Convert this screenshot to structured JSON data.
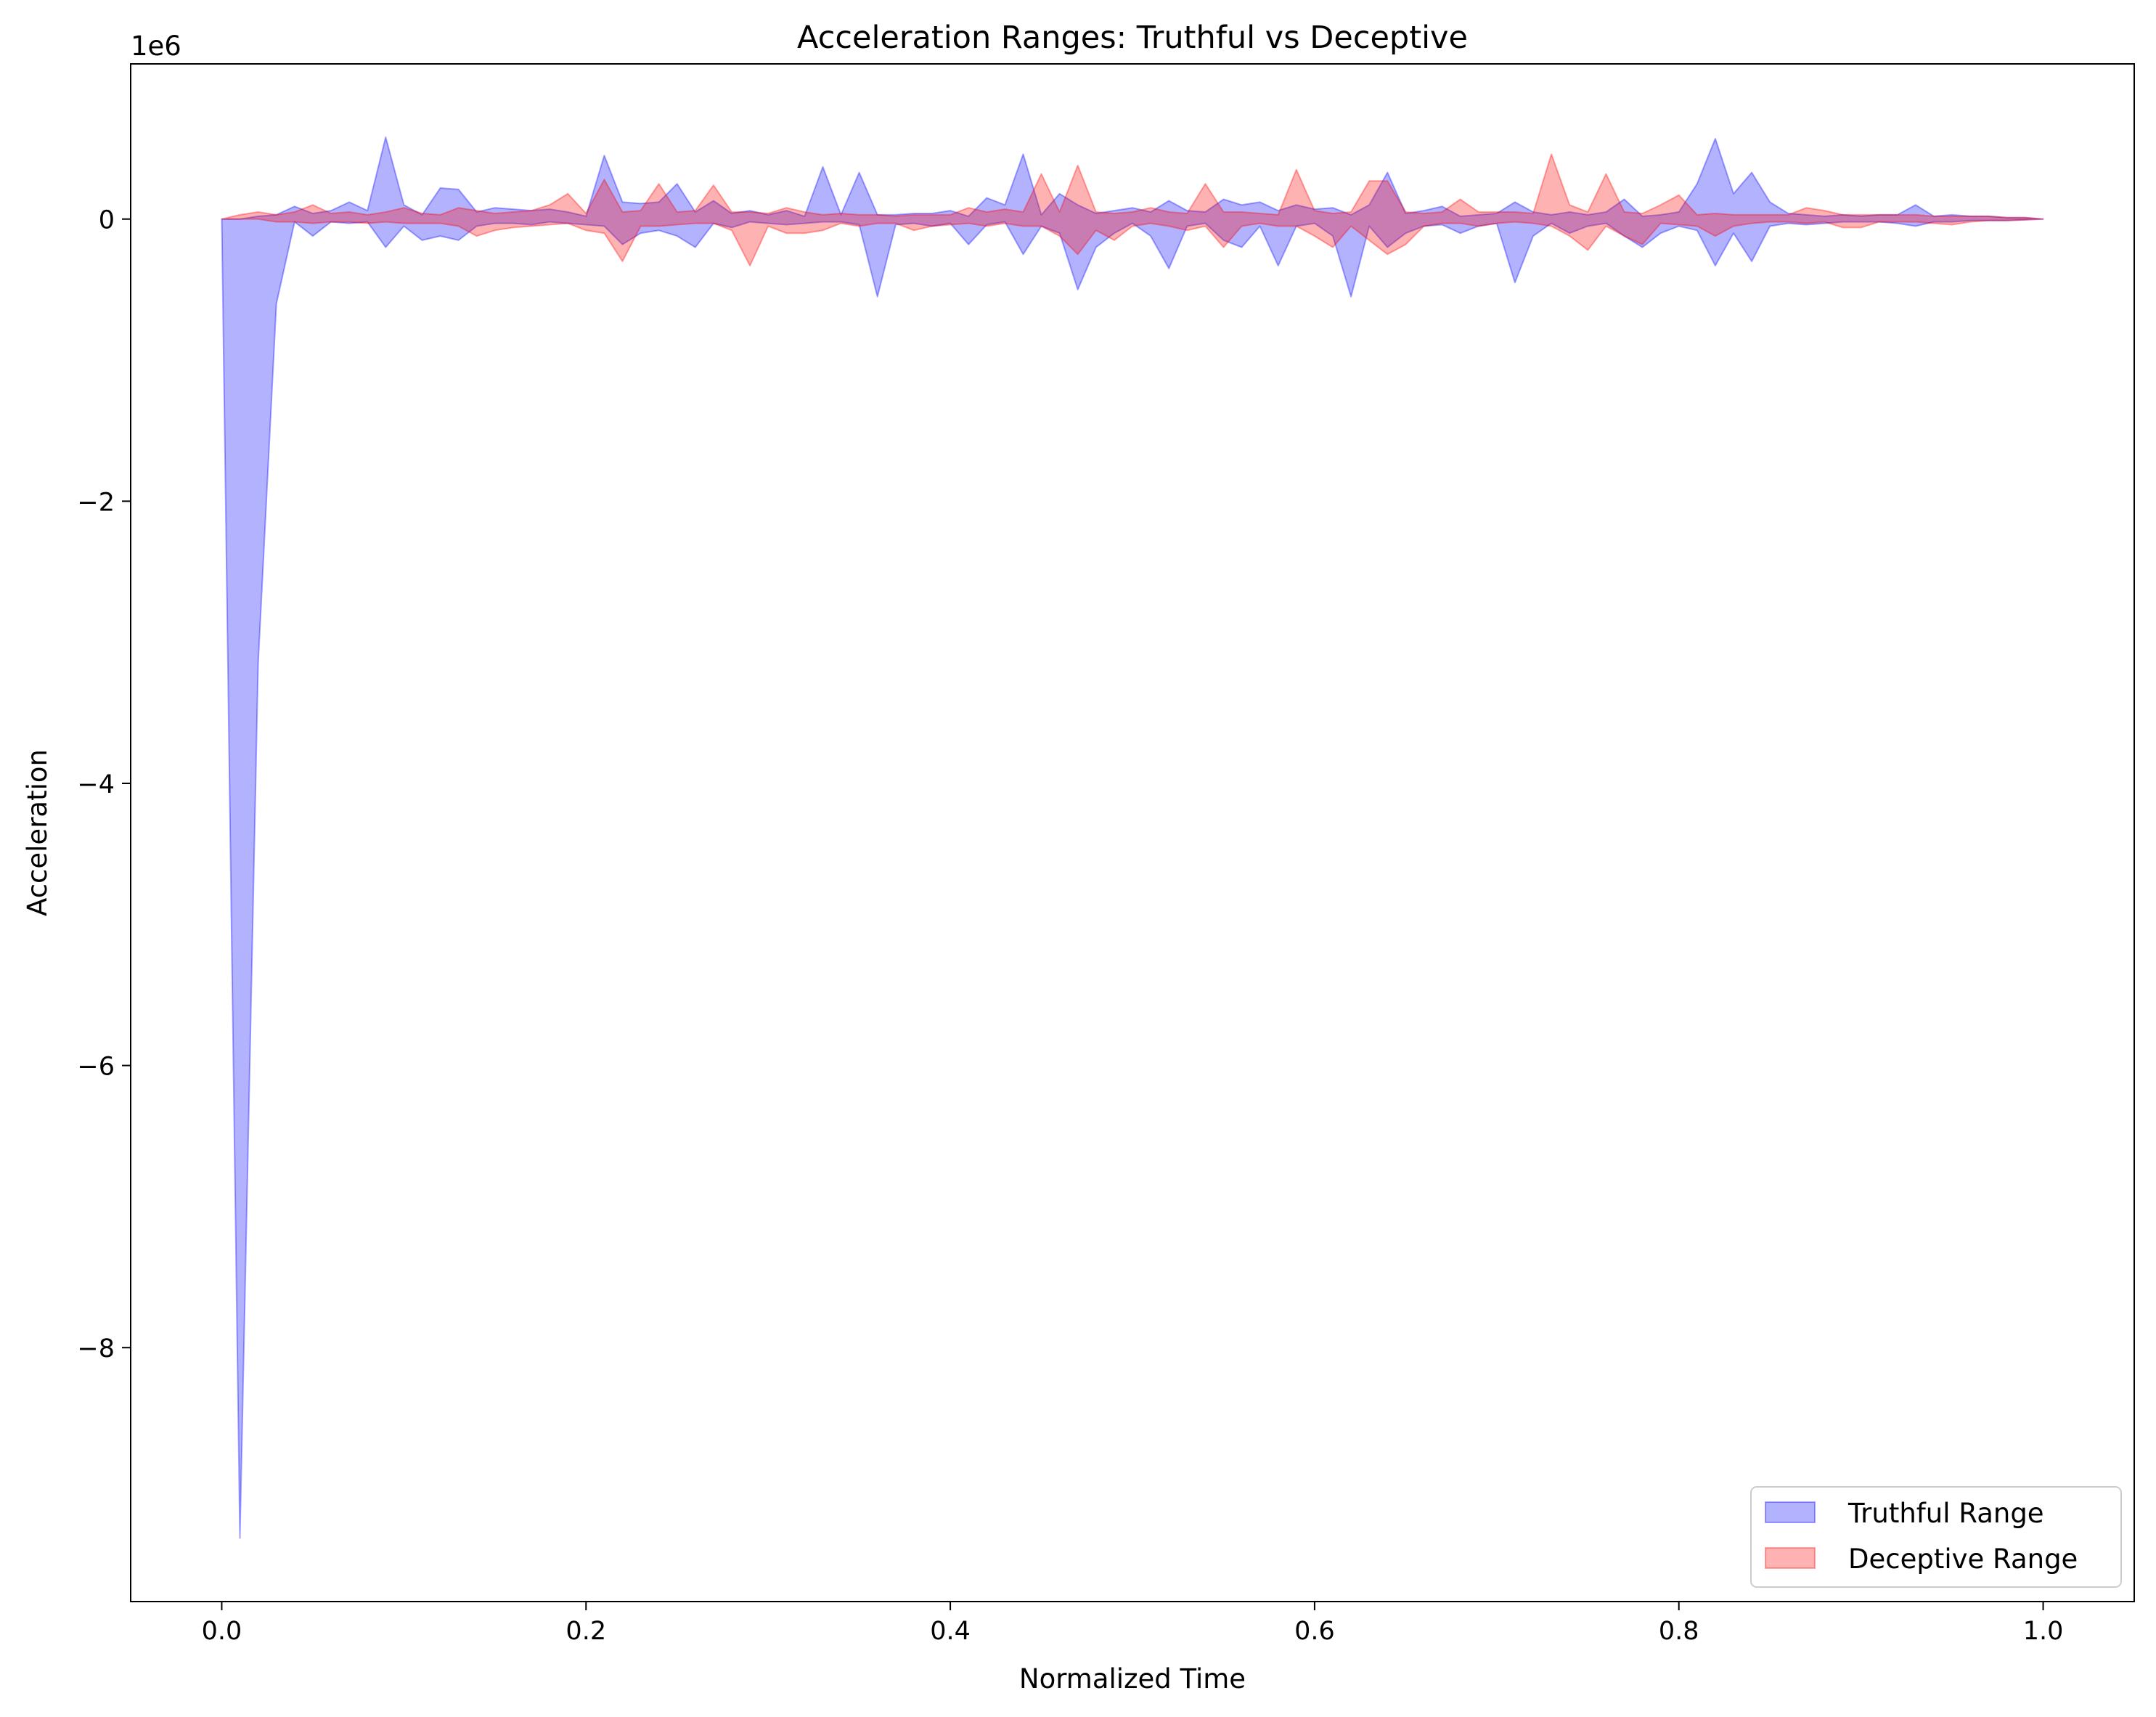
{
  "chart_data": {
    "type": "area",
    "title": "Acceleration Ranges: Truthful vs Deceptive",
    "xlabel": "Normalized Time",
    "ylabel": "Acceleration",
    "y_offset_text": "1e6",
    "y_scale_factor": 1000000,
    "xlim": [
      -0.05,
      1.05
    ],
    "ylim": [
      -9.8,
      1.1
    ],
    "x_ticks": [
      0.0,
      0.2,
      0.4,
      0.6,
      0.8,
      1.0
    ],
    "x_tick_labels": [
      "0.0",
      "0.2",
      "0.4",
      "0.6",
      "0.8",
      "1.0"
    ],
    "y_ticks": [
      0,
      -2,
      -4,
      -6,
      -8
    ],
    "y_tick_labels": [
      "0",
      "−2",
      "−4",
      "−6",
      "−8"
    ],
    "grid": false,
    "legend_position": "lower-right",
    "series": [
      {
        "name": "Truthful Range",
        "color": "#0000ff",
        "alpha": 0.3,
        "points": [
          [
            0.0,
            0.0,
            0.0
          ],
          [
            0.01,
            0.0,
            -9.35
          ],
          [
            0.02,
            0.02,
            -3.15
          ],
          [
            0.03,
            0.03,
            -0.6
          ],
          [
            0.04,
            0.09,
            -0.02
          ],
          [
            0.05,
            0.04,
            -0.12
          ],
          [
            0.06,
            0.06,
            -0.02
          ],
          [
            0.07,
            0.12,
            -0.03
          ],
          [
            0.08,
            0.06,
            -0.02
          ],
          [
            0.09,
            0.58,
            -0.2
          ],
          [
            0.1,
            0.1,
            -0.05
          ],
          [
            0.11,
            0.03,
            -0.15
          ],
          [
            0.12,
            0.22,
            -0.12
          ],
          [
            0.13,
            0.21,
            -0.15
          ],
          [
            0.14,
            0.05,
            -0.05
          ],
          [
            0.15,
            0.08,
            -0.03
          ],
          [
            0.16,
            0.07,
            -0.03
          ],
          [
            0.17,
            0.06,
            -0.04
          ],
          [
            0.18,
            0.07,
            -0.02
          ],
          [
            0.19,
            0.05,
            -0.03
          ],
          [
            0.2,
            0.02,
            -0.04
          ],
          [
            0.21,
            0.45,
            -0.05
          ],
          [
            0.22,
            0.12,
            -0.18
          ],
          [
            0.23,
            0.11,
            -0.1
          ],
          [
            0.24,
            0.12,
            -0.08
          ],
          [
            0.25,
            0.25,
            -0.12
          ],
          [
            0.26,
            0.05,
            -0.2
          ],
          [
            0.27,
            0.13,
            -0.03
          ],
          [
            0.28,
            0.04,
            -0.06
          ],
          [
            0.29,
            0.06,
            -0.02
          ],
          [
            0.3,
            0.03,
            -0.03
          ],
          [
            0.31,
            0.06,
            -0.04
          ],
          [
            0.32,
            0.02,
            -0.03
          ],
          [
            0.33,
            0.37,
            -0.02
          ],
          [
            0.34,
            0.03,
            -0.02
          ],
          [
            0.35,
            0.33,
            -0.04
          ],
          [
            0.36,
            0.03,
            -0.55
          ],
          [
            0.37,
            0.03,
            -0.04
          ],
          [
            0.38,
            0.04,
            -0.03
          ],
          [
            0.39,
            0.04,
            -0.05
          ],
          [
            0.4,
            0.06,
            -0.03
          ],
          [
            0.41,
            0.02,
            -0.18
          ],
          [
            0.42,
            0.15,
            -0.04
          ],
          [
            0.43,
            0.1,
            -0.02
          ],
          [
            0.44,
            0.46,
            -0.25
          ],
          [
            0.45,
            0.03,
            -0.05
          ],
          [
            0.46,
            0.18,
            -0.1
          ],
          [
            0.47,
            0.1,
            -0.5
          ],
          [
            0.48,
            0.04,
            -0.2
          ],
          [
            0.49,
            0.06,
            -0.1
          ],
          [
            0.5,
            0.08,
            -0.03
          ],
          [
            0.51,
            0.05,
            -0.12
          ],
          [
            0.52,
            0.13,
            -0.35
          ],
          [
            0.53,
            0.06,
            -0.05
          ],
          [
            0.54,
            0.05,
            -0.03
          ],
          [
            0.55,
            0.14,
            -0.15
          ],
          [
            0.56,
            0.1,
            -0.2
          ],
          [
            0.57,
            0.12,
            -0.05
          ],
          [
            0.58,
            0.06,
            -0.33
          ],
          [
            0.59,
            0.1,
            -0.05
          ],
          [
            0.6,
            0.07,
            -0.03
          ],
          [
            0.61,
            0.08,
            -0.12
          ],
          [
            0.62,
            0.03,
            -0.55
          ],
          [
            0.63,
            0.1,
            -0.05
          ],
          [
            0.64,
            0.33,
            -0.2
          ],
          [
            0.65,
            0.04,
            -0.1
          ],
          [
            0.66,
            0.06,
            -0.05
          ],
          [
            0.67,
            0.09,
            -0.04
          ],
          [
            0.68,
            0.02,
            -0.1
          ],
          [
            0.69,
            0.03,
            -0.05
          ],
          [
            0.7,
            0.04,
            -0.03
          ],
          [
            0.71,
            0.12,
            -0.45
          ],
          [
            0.72,
            0.05,
            -0.12
          ],
          [
            0.73,
            0.03,
            -0.03
          ],
          [
            0.74,
            0.05,
            -0.1
          ],
          [
            0.75,
            0.03,
            -0.05
          ],
          [
            0.76,
            0.05,
            -0.03
          ],
          [
            0.77,
            0.14,
            -0.12
          ],
          [
            0.78,
            0.02,
            -0.2
          ],
          [
            0.79,
            0.03,
            -0.1
          ],
          [
            0.8,
            0.05,
            -0.05
          ],
          [
            0.81,
            0.25,
            -0.08
          ],
          [
            0.82,
            0.57,
            -0.33
          ],
          [
            0.83,
            0.18,
            -0.1
          ],
          [
            0.84,
            0.33,
            -0.3
          ],
          [
            0.85,
            0.12,
            -0.05
          ],
          [
            0.86,
            0.04,
            -0.03
          ],
          [
            0.87,
            0.03,
            -0.04
          ],
          [
            0.88,
            0.02,
            -0.03
          ],
          [
            0.89,
            0.03,
            -0.02
          ],
          [
            0.9,
            0.02,
            -0.02
          ],
          [
            0.91,
            0.03,
            -0.02
          ],
          [
            0.92,
            0.03,
            -0.03
          ],
          [
            0.93,
            0.1,
            -0.05
          ],
          [
            0.94,
            0.02,
            -0.02
          ],
          [
            0.95,
            0.03,
            -0.02
          ],
          [
            0.96,
            0.02,
            -0.01
          ],
          [
            0.97,
            0.02,
            -0.01
          ],
          [
            0.98,
            0.01,
            -0.01
          ],
          [
            0.99,
            0.01,
            -0.005
          ],
          [
            1.0,
            0.0,
            0.0
          ]
        ]
      },
      {
        "name": "Deceptive Range",
        "color": "#ff0000",
        "alpha": 0.3,
        "points": [
          [
            0.0,
            0.0,
            0.0
          ],
          [
            0.01,
            0.03,
            0.0
          ],
          [
            0.02,
            0.05,
            0.0
          ],
          [
            0.03,
            0.03,
            -0.02
          ],
          [
            0.04,
            0.05,
            -0.02
          ],
          [
            0.05,
            0.1,
            -0.03
          ],
          [
            0.06,
            0.04,
            -0.02
          ],
          [
            0.07,
            0.05,
            -0.02
          ],
          [
            0.08,
            0.03,
            -0.03
          ],
          [
            0.09,
            0.05,
            -0.02
          ],
          [
            0.1,
            0.08,
            -0.03
          ],
          [
            0.11,
            0.04,
            -0.03
          ],
          [
            0.12,
            0.03,
            -0.03
          ],
          [
            0.13,
            0.08,
            -0.05
          ],
          [
            0.14,
            0.06,
            -0.12
          ],
          [
            0.15,
            0.04,
            -0.08
          ],
          [
            0.16,
            0.05,
            -0.06
          ],
          [
            0.17,
            0.06,
            -0.05
          ],
          [
            0.18,
            0.1,
            -0.04
          ],
          [
            0.19,
            0.18,
            -0.03
          ],
          [
            0.2,
            0.04,
            -0.08
          ],
          [
            0.21,
            0.28,
            -0.1
          ],
          [
            0.22,
            0.05,
            -0.3
          ],
          [
            0.23,
            0.06,
            -0.05
          ],
          [
            0.24,
            0.25,
            -0.05
          ],
          [
            0.25,
            0.05,
            -0.04
          ],
          [
            0.26,
            0.06,
            -0.03
          ],
          [
            0.27,
            0.24,
            -0.03
          ],
          [
            0.28,
            0.05,
            -0.08
          ],
          [
            0.29,
            0.05,
            -0.33
          ],
          [
            0.3,
            0.04,
            -0.05
          ],
          [
            0.31,
            0.08,
            -0.1
          ],
          [
            0.32,
            0.05,
            -0.1
          ],
          [
            0.33,
            0.03,
            -0.08
          ],
          [
            0.34,
            0.04,
            -0.03
          ],
          [
            0.35,
            0.03,
            -0.05
          ],
          [
            0.36,
            0.03,
            -0.03
          ],
          [
            0.37,
            0.02,
            -0.03
          ],
          [
            0.38,
            0.03,
            -0.08
          ],
          [
            0.39,
            0.03,
            -0.05
          ],
          [
            0.4,
            0.03,
            -0.04
          ],
          [
            0.41,
            0.08,
            -0.03
          ],
          [
            0.42,
            0.05,
            -0.05
          ],
          [
            0.43,
            0.07,
            -0.03
          ],
          [
            0.44,
            0.05,
            -0.05
          ],
          [
            0.45,
            0.32,
            -0.05
          ],
          [
            0.46,
            0.05,
            -0.12
          ],
          [
            0.47,
            0.38,
            -0.25
          ],
          [
            0.48,
            0.05,
            -0.08
          ],
          [
            0.49,
            0.04,
            -0.15
          ],
          [
            0.5,
            0.05,
            -0.05
          ],
          [
            0.51,
            0.08,
            -0.03
          ],
          [
            0.52,
            0.05,
            -0.05
          ],
          [
            0.53,
            0.04,
            -0.08
          ],
          [
            0.54,
            0.25,
            -0.05
          ],
          [
            0.55,
            0.05,
            -0.2
          ],
          [
            0.56,
            0.05,
            -0.05
          ],
          [
            0.57,
            0.04,
            -0.03
          ],
          [
            0.58,
            0.03,
            -0.05
          ],
          [
            0.59,
            0.35,
            -0.05
          ],
          [
            0.6,
            0.06,
            -0.12
          ],
          [
            0.61,
            0.04,
            -0.2
          ],
          [
            0.62,
            0.05,
            -0.05
          ],
          [
            0.63,
            0.27,
            -0.15
          ],
          [
            0.64,
            0.27,
            -0.25
          ],
          [
            0.65,
            0.05,
            -0.18
          ],
          [
            0.66,
            0.04,
            -0.05
          ],
          [
            0.67,
            0.05,
            -0.03
          ],
          [
            0.68,
            0.14,
            -0.03
          ],
          [
            0.69,
            0.05,
            -0.05
          ],
          [
            0.7,
            0.05,
            -0.03
          ],
          [
            0.71,
            0.05,
            -0.02
          ],
          [
            0.72,
            0.04,
            -0.03
          ],
          [
            0.73,
            0.46,
            -0.05
          ],
          [
            0.74,
            0.1,
            -0.12
          ],
          [
            0.75,
            0.05,
            -0.22
          ],
          [
            0.76,
            0.32,
            -0.05
          ],
          [
            0.77,
            0.05,
            -0.12
          ],
          [
            0.78,
            0.04,
            -0.18
          ],
          [
            0.79,
            0.1,
            -0.03
          ],
          [
            0.8,
            0.17,
            -0.04
          ],
          [
            0.81,
            0.03,
            -0.05
          ],
          [
            0.82,
            0.04,
            -0.12
          ],
          [
            0.83,
            0.03,
            -0.05
          ],
          [
            0.84,
            0.03,
            -0.03
          ],
          [
            0.85,
            0.03,
            -0.02
          ],
          [
            0.86,
            0.03,
            -0.02
          ],
          [
            0.87,
            0.08,
            -0.03
          ],
          [
            0.88,
            0.06,
            -0.02
          ],
          [
            0.89,
            0.03,
            -0.06
          ],
          [
            0.9,
            0.03,
            -0.06
          ],
          [
            0.91,
            0.03,
            -0.02
          ],
          [
            0.92,
            0.03,
            -0.02
          ],
          [
            0.93,
            0.03,
            -0.02
          ],
          [
            0.94,
            0.02,
            -0.03
          ],
          [
            0.95,
            0.02,
            -0.04
          ],
          [
            0.96,
            0.02,
            -0.02
          ],
          [
            0.97,
            0.02,
            -0.01
          ],
          [
            0.98,
            0.01,
            -0.01
          ],
          [
            0.99,
            0.01,
            -0.005
          ],
          [
            1.0,
            0.0,
            0.0
          ]
        ]
      }
    ]
  }
}
